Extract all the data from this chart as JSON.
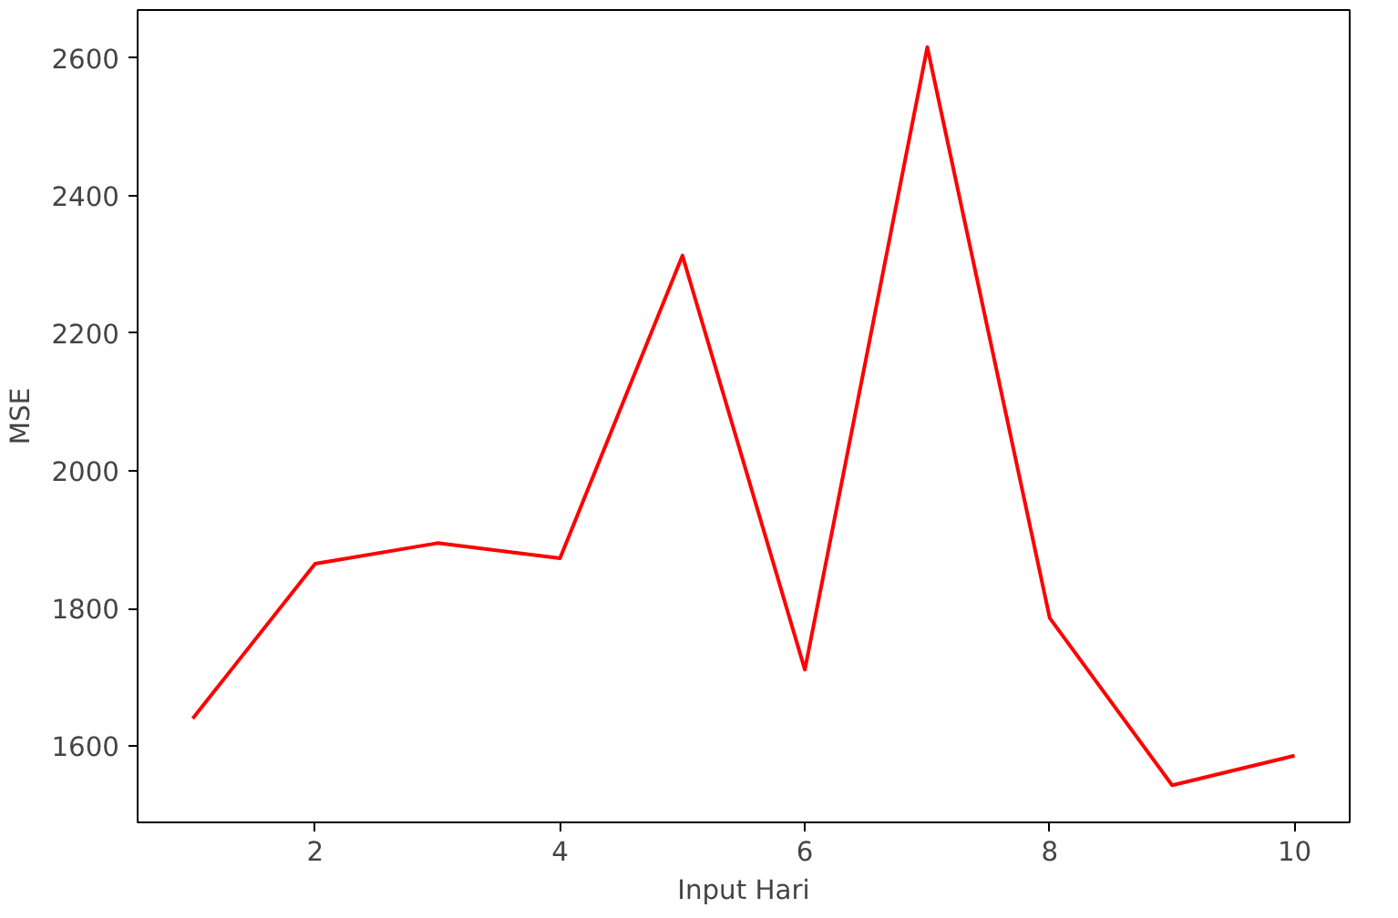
{
  "chart_data": {
    "type": "line",
    "xlabel": "Input Hari",
    "ylabel": "MSE",
    "x": [
      1,
      2,
      3,
      4,
      5,
      6,
      7,
      8,
      9,
      10
    ],
    "series": [
      {
        "color": "#ff0000",
        "values": [
          1640,
          1865,
          1895,
          1873,
          2313,
          1711,
          2616,
          1786,
          1543,
          1586
        ]
      }
    ],
    "xlim": [
      0.55,
      10.45
    ],
    "ylim": [
      1489,
      2670
    ],
    "xticks": [
      2,
      4,
      6,
      8,
      10
    ],
    "yticks": [
      1600,
      1800,
      2000,
      2200,
      2400,
      2600
    ],
    "grid": false,
    "line_style": "solid"
  }
}
